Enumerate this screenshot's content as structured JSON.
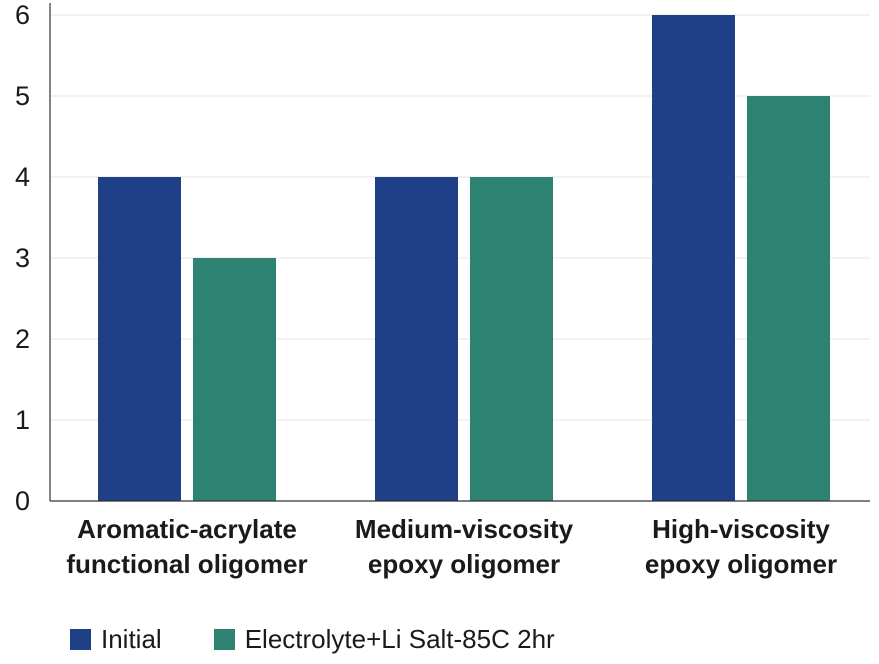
{
  "chart_data": {
    "type": "bar",
    "title": "",
    "xlabel": "",
    "ylabel": "",
    "categories": [
      [
        "Aromatic-acrylate",
        "functional oligomer"
      ],
      [
        "Medium-viscosity",
        "epoxy oligomer"
      ],
      [
        "High-viscosity",
        "epoxy oligomer"
      ]
    ],
    "series": [
      {
        "name": "Initial",
        "values": [
          4,
          4,
          6
        ],
        "color": "#1f3f87"
      },
      {
        "name": "Electrolyte+Li Salt-85C 2hr",
        "values": [
          3,
          4,
          5
        ],
        "color": "#2e8272"
      }
    ],
    "ylim": [
      0,
      6
    ],
    "yticks": [
      0,
      1,
      2,
      3,
      4,
      5,
      6
    ],
    "grid": true,
    "legend": "bottom-left"
  }
}
